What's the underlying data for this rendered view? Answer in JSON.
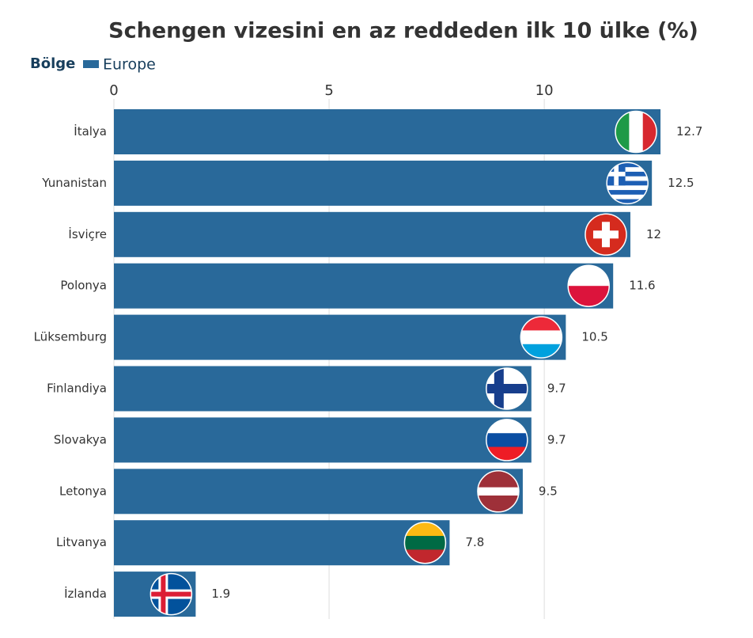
{
  "chart_data": {
    "type": "bar",
    "title": "Schengen vizesini en az reddeden ilk 10 ülke (%)",
    "legend_title": "Bölge",
    "categories": [
      "İtalya",
      "Yunanistan",
      "İsviçre",
      "Polonya",
      "Lüksemburg",
      "Finlandiya",
      "Slovakya",
      "Letonya",
      "Litvanya",
      "İzlanda"
    ],
    "series": [
      {
        "name": "Europe",
        "color": "#29699a",
        "values": [
          12.7,
          12.5,
          12,
          11.6,
          10.5,
          9.7,
          9.7,
          9.5,
          7.8,
          1.9
        ]
      }
    ],
    "xlim": [
      0,
      14.5
    ],
    "xticks": [
      0,
      5,
      10
    ],
    "grid": true
  }
}
